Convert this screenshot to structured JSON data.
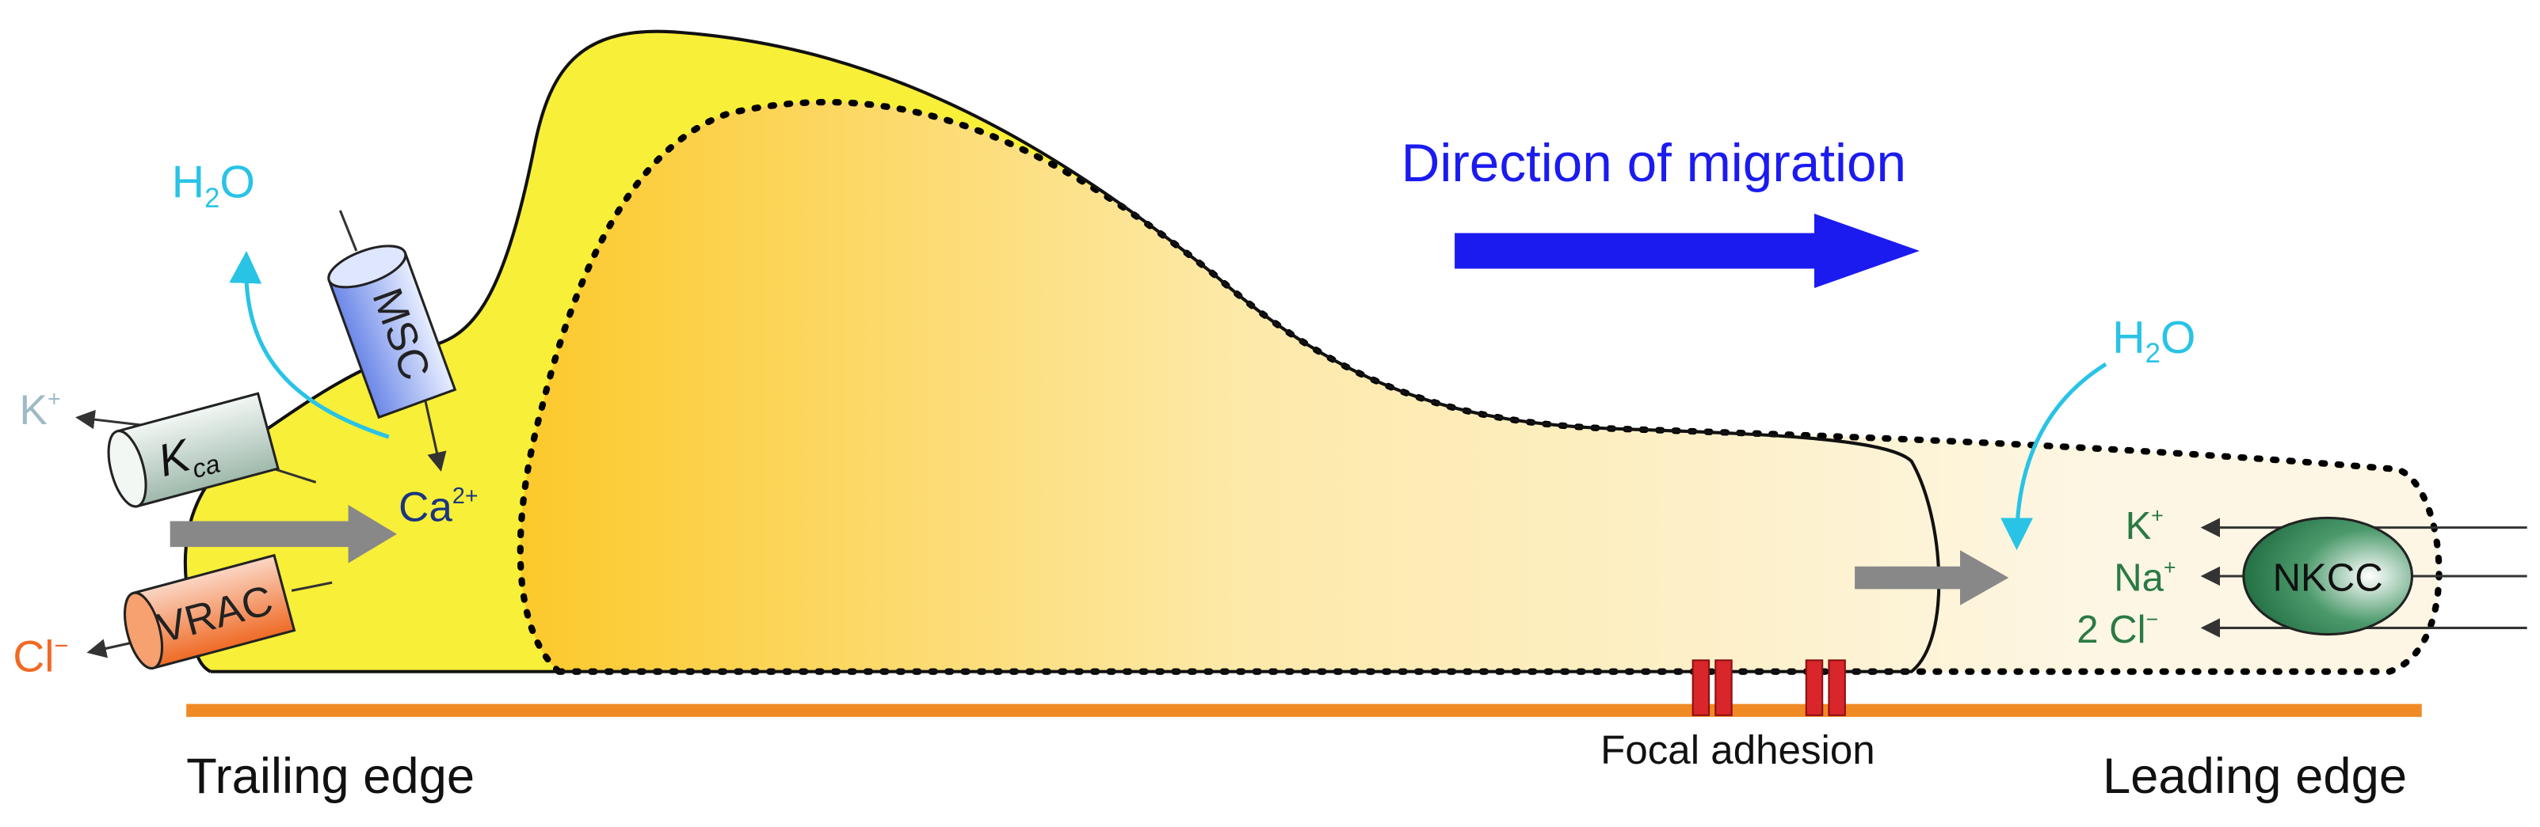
{
  "labels": {
    "direction": "Direction of migration",
    "trailing_edge": "Trailing edge",
    "leading_edge": "Leading edge",
    "focal_adhesion": "Focal adhesion"
  },
  "channels": {
    "msc": "MSC",
    "kca": {
      "base": "K",
      "sub": "ca"
    },
    "vrac": "VRAC",
    "nkcc": "NKCC"
  },
  "ions": {
    "h2o_left": {
      "base": "H",
      "sub": "2",
      "rest": "O"
    },
    "h2o_right": {
      "base": "H",
      "sub": "2",
      "rest": "O"
    },
    "k_left": {
      "base": "K",
      "sup": "+"
    },
    "ca": {
      "base": "Ca",
      "sup": "2+"
    },
    "cl_left": {
      "base": "Cl",
      "sup": "−"
    },
    "k_right": {
      "base": "K",
      "sup": "+"
    },
    "na_right": {
      "base": "Na",
      "sup": "+"
    },
    "cl_right": {
      "base": "2 Cl",
      "sup": "−"
    }
  }
}
